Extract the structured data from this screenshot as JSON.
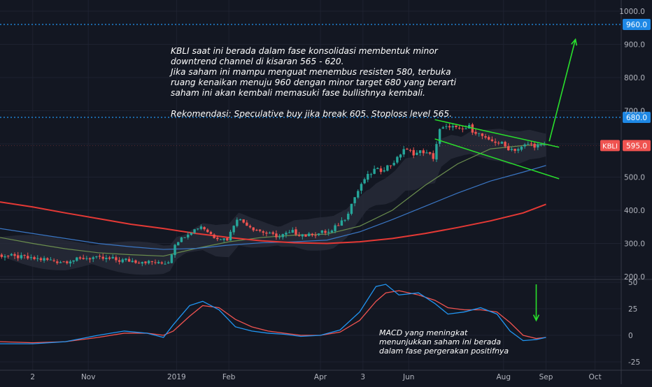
{
  "symbol": "KBLI",
  "colors": {
    "background": "#131722",
    "grid": "#1e2230",
    "bull": "#26a69a",
    "bear": "#ef5350",
    "ma_short": "#6b8e4e",
    "ma_mid": "#3a76c4",
    "ma_long": "#e53935",
    "macd_line": "#2196f3",
    "signal_line": "#ef5350",
    "annotation": "#29e02c",
    "level_line": "#2196f3",
    "price_tag": "#ef5350",
    "level_tag": "#1e88e5"
  },
  "annotations": {
    "main_text": "KBLI saat ini berada dalam fase konsolidasi membentuk minor\ndowntrend channel di kisaran 565 - 620.\nJika saham ini mampu menguat menembus resisten 580, terbuka\nruang kenaikan menuju 960 dengan minor target 680 yang berarti\nsaham ini akan kembali memasuki fase bullishnya kembali.\n\nRekomendasi: Speculative buy jika break 605. Stoploss level 565.",
    "macd_text": "MACD yang meningkat\nmenunjukkan saham ini berada\ndalam fase pergerakan positifnya"
  },
  "chart_data": {
    "type": "candlestick",
    "symbol": "KBLI",
    "last_price": 595,
    "price_axis": {
      "ylim": [
        200,
        1000
      ],
      "ticks": [
        200,
        300,
        400,
        500,
        600,
        700,
        800,
        900,
        1000
      ],
      "tick_labels": [
        "200.0",
        "300.0",
        "400.0",
        "500.0",
        "600.0",
        "700.0",
        "800.0",
        "900.0",
        "1000.0"
      ]
    },
    "macd_axis": {
      "ylim": [
        -25,
        50
      ],
      "ticks": [
        -25,
        0,
        25,
        50
      ],
      "tick_labels": [
        "-25",
        "0",
        "25",
        "50"
      ]
    },
    "time_axis": {
      "ticks": [
        {
          "t": 10,
          "label": "2"
        },
        {
          "t": 27,
          "label": "Nov"
        },
        {
          "t": 54,
          "label": "2019"
        },
        {
          "t": 70,
          "label": "Feb"
        },
        {
          "t": 98,
          "label": "Apr"
        },
        {
          "t": 111,
          "label": "3"
        },
        {
          "t": 125,
          "label": "Jun"
        },
        {
          "t": 154,
          "label": "Aug"
        },
        {
          "t": 167,
          "label": "Sep"
        },
        {
          "t": 182,
          "label": "Oct"
        }
      ]
    },
    "horizontal_levels": [
      {
        "price": 960,
        "label": "960.0"
      },
      {
        "price": 680,
        "label": "680.0"
      }
    ],
    "price_path": [
      [
        0,
        265
      ],
      [
        10,
        255
      ],
      [
        20,
        245
      ],
      [
        28,
        258
      ],
      [
        36,
        250
      ],
      [
        46,
        245
      ],
      [
        50,
        240
      ],
      [
        52,
        245
      ],
      [
        54,
        300
      ],
      [
        58,
        330
      ],
      [
        62,
        352
      ],
      [
        66,
        320
      ],
      [
        70,
        312
      ],
      [
        73,
        378
      ],
      [
        77,
        350
      ],
      [
        82,
        330
      ],
      [
        86,
        320
      ],
      [
        90,
        335
      ],
      [
        94,
        325
      ],
      [
        98,
        330
      ],
      [
        102,
        336
      ],
      [
        106,
        378
      ],
      [
        109,
        440
      ],
      [
        112,
        495
      ],
      [
        115,
        520
      ],
      [
        118,
        525
      ],
      [
        121,
        545
      ],
      [
        124,
        585
      ],
      [
        127,
        570
      ],
      [
        130,
        578
      ],
      [
        133,
        560
      ],
      [
        135,
        640
      ],
      [
        138,
        655
      ],
      [
        141,
        640
      ],
      [
        144,
        650
      ],
      [
        147,
        630
      ],
      [
        150,
        610
      ],
      [
        153,
        605
      ],
      [
        156,
        585
      ],
      [
        159,
        585
      ],
      [
        162,
        600
      ],
      [
        165,
        595
      ]
    ],
    "moving_averages": [
      {
        "key": "ma_short",
        "points": [
          [
            0,
            318
          ],
          [
            10,
            300
          ],
          [
            20,
            284
          ],
          [
            30,
            272
          ],
          [
            40,
            266
          ],
          [
            50,
            262
          ],
          [
            60,
            285
          ],
          [
            70,
            305
          ],
          [
            80,
            318
          ],
          [
            90,
            325
          ],
          [
            100,
            328
          ],
          [
            110,
            352
          ],
          [
            120,
            400
          ],
          [
            130,
            475
          ],
          [
            140,
            540
          ],
          [
            150,
            585
          ],
          [
            160,
            595
          ],
          [
            167,
            598
          ]
        ]
      },
      {
        "key": "ma_mid",
        "points": [
          [
            0,
            345
          ],
          [
            10,
            330
          ],
          [
            20,
            315
          ],
          [
            30,
            300
          ],
          [
            40,
            290
          ],
          [
            50,
            282
          ],
          [
            60,
            285
          ],
          [
            70,
            295
          ],
          [
            80,
            302
          ],
          [
            90,
            305
          ],
          [
            100,
            310
          ],
          [
            110,
            335
          ],
          [
            120,
            372
          ],
          [
            130,
            412
          ],
          [
            140,
            452
          ],
          [
            150,
            488
          ],
          [
            160,
            515
          ],
          [
            167,
            535
          ]
        ]
      },
      {
        "key": "ma_long",
        "points": [
          [
            0,
            425
          ],
          [
            10,
            410
          ],
          [
            20,
            392
          ],
          [
            30,
            375
          ],
          [
            40,
            358
          ],
          [
            50,
            345
          ],
          [
            60,
            330
          ],
          [
            70,
            318
          ],
          [
            80,
            308
          ],
          [
            90,
            302
          ],
          [
            100,
            300
          ],
          [
            110,
            305
          ],
          [
            120,
            315
          ],
          [
            130,
            330
          ],
          [
            140,
            348
          ],
          [
            150,
            368
          ],
          [
            160,
            392
          ],
          [
            167,
            418
          ]
        ]
      }
    ],
    "drawings": {
      "channel_upper": [
        [
          133,
          673
        ],
        [
          171,
          590
        ]
      ],
      "channel_lower": [
        [
          133,
          615
        ],
        [
          171,
          495
        ]
      ],
      "target_arrow": [
        [
          168,
          608
        ],
        [
          176,
          915
        ]
      ],
      "macd_arrow": [
        [
          164,
          48
        ],
        [
          164,
          14
        ]
      ]
    },
    "macd": {
      "macd_line": [
        [
          0,
          -8
        ],
        [
          10,
          -8
        ],
        [
          20,
          -6
        ],
        [
          30,
          0
        ],
        [
          38,
          4
        ],
        [
          45,
          2
        ],
        [
          50,
          -2
        ],
        [
          53,
          10
        ],
        [
          58,
          28
        ],
        [
          62,
          32
        ],
        [
          67,
          24
        ],
        [
          72,
          8
        ],
        [
          77,
          4
        ],
        [
          82,
          2
        ],
        [
          87,
          1
        ],
        [
          92,
          -1
        ],
        [
          98,
          0
        ],
        [
          104,
          5
        ],
        [
          110,
          22
        ],
        [
          115,
          46
        ],
        [
          118,
          48
        ],
        [
          122,
          38
        ],
        [
          128,
          40
        ],
        [
          133,
          30
        ],
        [
          137,
          20
        ],
        [
          142,
          22
        ],
        [
          147,
          26
        ],
        [
          152,
          20
        ],
        [
          156,
          4
        ],
        [
          160,
          -5
        ],
        [
          164,
          -4
        ],
        [
          167,
          -2
        ]
      ],
      "signal_line": [
        [
          0,
          -6
        ],
        [
          10,
          -7
        ],
        [
          20,
          -6
        ],
        [
          30,
          -2
        ],
        [
          38,
          2
        ],
        [
          45,
          2
        ],
        [
          50,
          0
        ],
        [
          53,
          4
        ],
        [
          58,
          18
        ],
        [
          62,
          28
        ],
        [
          67,
          26
        ],
        [
          72,
          15
        ],
        [
          77,
          8
        ],
        [
          82,
          4
        ],
        [
          87,
          2
        ],
        [
          92,
          0
        ],
        [
          98,
          0
        ],
        [
          104,
          3
        ],
        [
          110,
          14
        ],
        [
          115,
          32
        ],
        [
          118,
          40
        ],
        [
          122,
          42
        ],
        [
          128,
          38
        ],
        [
          133,
          33
        ],
        [
          137,
          26
        ],
        [
          142,
          24
        ],
        [
          147,
          24
        ],
        [
          152,
          22
        ],
        [
          156,
          12
        ],
        [
          160,
          0
        ],
        [
          164,
          -3
        ],
        [
          167,
          -2
        ]
      ]
    }
  }
}
